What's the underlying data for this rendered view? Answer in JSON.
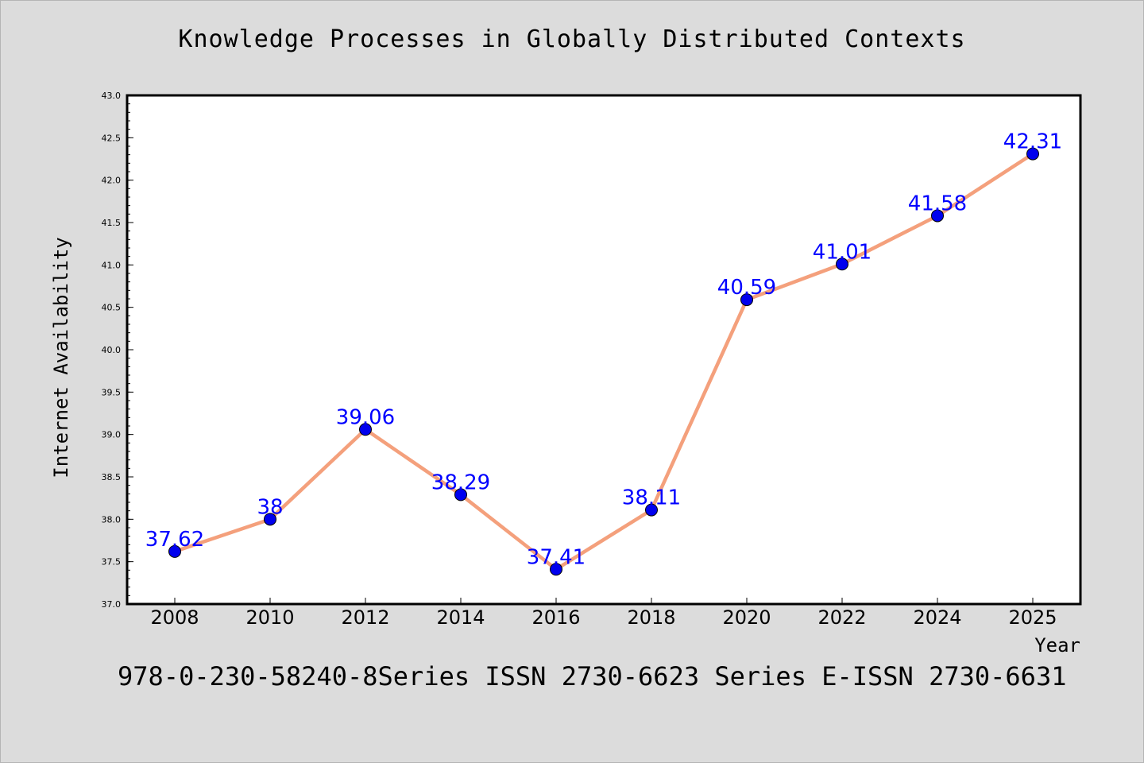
{
  "footer": "978-0-230-58240-8Series ISSN 2730-6623 Series E-ISSN 2730-6631",
  "chart_data": {
    "type": "line",
    "title": "Knowledge Processes in Globally Distributed Contexts",
    "xlabel": "Year",
    "ylabel": "Internet Availability",
    "x": [
      "2008",
      "2010",
      "2012",
      "2014",
      "2016",
      "2018",
      "2020",
      "2022",
      "2024",
      "2025"
    ],
    "series": [
      {
        "values": [
          37.62,
          38,
          39.06,
          38.29,
          37.41,
          38.11,
          40.59,
          41.01,
          41.58,
          42.31
        ],
        "data_labels": [
          "37.62",
          "38",
          "39.06",
          "38.29",
          "37.41",
          "38.11",
          "40.59",
          "41.01",
          "41.58",
          "42.31"
        ],
        "line_color": "#f4a07c",
        "marker_color": "#0000ee"
      }
    ],
    "ylim": [
      37.0,
      43.0
    ],
    "yticks": [
      "37.0",
      "37.5",
      "38.0",
      "38.5",
      "39.0",
      "39.5",
      "40.0",
      "40.5",
      "41.0",
      "41.5",
      "42.0",
      "42.5",
      "43.0"
    ],
    "grid": false,
    "label_color": "#0000ff"
  }
}
